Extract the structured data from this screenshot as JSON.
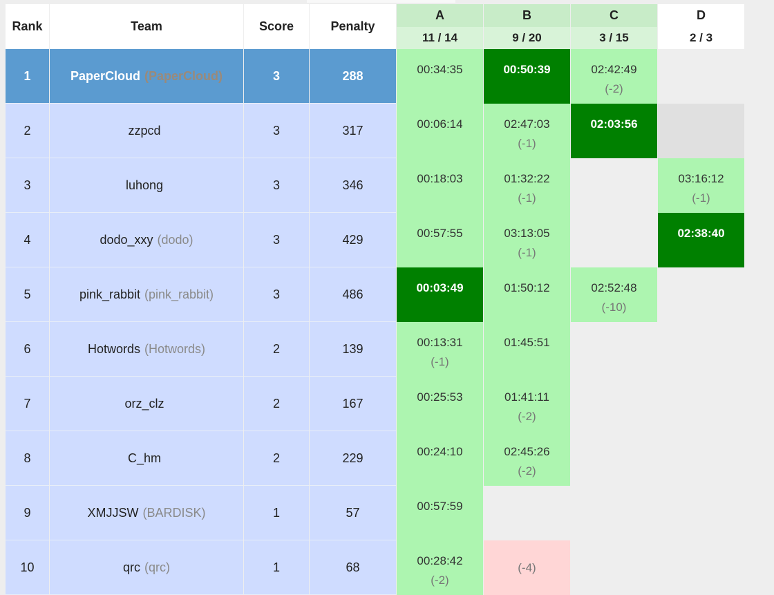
{
  "columns": {
    "rank": "Rank",
    "team": "Team",
    "score": "Score",
    "penalty": "Penalty"
  },
  "problems": [
    {
      "letter": "A",
      "stat": "11 / 14"
    },
    {
      "letter": "B",
      "stat": "9 / 20"
    },
    {
      "letter": "C",
      "stat": "3 / 15"
    },
    {
      "letter": "D",
      "stat": "2 / 3"
    }
  ],
  "rows": [
    {
      "rank": "1",
      "name": "PaperCloud",
      "alias": "(PaperCloud)",
      "score": "3",
      "penalty": "288",
      "results": [
        {
          "status": "ac",
          "time": "00:34:35",
          "tries": ""
        },
        {
          "status": "fb",
          "time": "00:50:39",
          "tries": ""
        },
        {
          "status": "ac",
          "time": "02:42:49",
          "tries": "(-2)"
        },
        {
          "status": "none",
          "time": "",
          "tries": ""
        }
      ]
    },
    {
      "rank": "2",
      "name": "zzpcd",
      "alias": "",
      "score": "3",
      "penalty": "317",
      "results": [
        {
          "status": "ac",
          "time": "00:06:14",
          "tries": ""
        },
        {
          "status": "ac",
          "time": "02:47:03",
          "tries": "(-1)"
        },
        {
          "status": "fb",
          "time": "02:03:56",
          "tries": ""
        },
        {
          "status": "pend",
          "time": "",
          "tries": ""
        }
      ]
    },
    {
      "rank": "3",
      "name": "luhong",
      "alias": "",
      "score": "3",
      "penalty": "346",
      "results": [
        {
          "status": "ac",
          "time": "00:18:03",
          "tries": ""
        },
        {
          "status": "ac",
          "time": "01:32:22",
          "tries": "(-1)"
        },
        {
          "status": "none",
          "time": "",
          "tries": ""
        },
        {
          "status": "ac",
          "time": "03:16:12",
          "tries": "(-1)"
        }
      ]
    },
    {
      "rank": "4",
      "name": "dodo_xxy",
      "alias": "(dodo)",
      "score": "3",
      "penalty": "429",
      "results": [
        {
          "status": "ac",
          "time": "00:57:55",
          "tries": ""
        },
        {
          "status": "ac",
          "time": "03:13:05",
          "tries": "(-1)"
        },
        {
          "status": "none",
          "time": "",
          "tries": ""
        },
        {
          "status": "fb",
          "time": "02:38:40",
          "tries": ""
        }
      ]
    },
    {
      "rank": "5",
      "name": "pink_rabbit",
      "alias": "(pink_rabbit)",
      "score": "3",
      "penalty": "486",
      "results": [
        {
          "status": "fb",
          "time": "00:03:49",
          "tries": ""
        },
        {
          "status": "ac",
          "time": "01:50:12",
          "tries": ""
        },
        {
          "status": "ac",
          "time": "02:52:48",
          "tries": "(-10)"
        },
        {
          "status": "none",
          "time": "",
          "tries": ""
        }
      ]
    },
    {
      "rank": "6",
      "name": "Hotwords",
      "alias": "(Hotwords)",
      "score": "2",
      "penalty": "139",
      "results": [
        {
          "status": "ac",
          "time": "00:13:31",
          "tries": "(-1)"
        },
        {
          "status": "ac",
          "time": "01:45:51",
          "tries": ""
        },
        {
          "status": "none",
          "time": "",
          "tries": ""
        },
        {
          "status": "none",
          "time": "",
          "tries": ""
        }
      ]
    },
    {
      "rank": "7",
      "name": "orz_clz",
      "alias": "",
      "score": "2",
      "penalty": "167",
      "results": [
        {
          "status": "ac",
          "time": "00:25:53",
          "tries": ""
        },
        {
          "status": "ac",
          "time": "01:41:11",
          "tries": "(-2)"
        },
        {
          "status": "none",
          "time": "",
          "tries": ""
        },
        {
          "status": "none",
          "time": "",
          "tries": ""
        }
      ]
    },
    {
      "rank": "8",
      "name": "C_hm",
      "alias": "",
      "score": "2",
      "penalty": "229",
      "results": [
        {
          "status": "ac",
          "time": "00:24:10",
          "tries": ""
        },
        {
          "status": "ac",
          "time": "02:45:26",
          "tries": "(-2)"
        },
        {
          "status": "none",
          "time": "",
          "tries": ""
        },
        {
          "status": "none",
          "time": "",
          "tries": ""
        }
      ]
    },
    {
      "rank": "9",
      "name": "XMJJSW",
      "alias": "(BARDISK)",
      "score": "1",
      "penalty": "57",
      "results": [
        {
          "status": "ac",
          "time": "00:57:59",
          "tries": ""
        },
        {
          "status": "none",
          "time": "",
          "tries": ""
        },
        {
          "status": "none",
          "time": "",
          "tries": ""
        },
        {
          "status": "none",
          "time": "",
          "tries": ""
        }
      ]
    },
    {
      "rank": "10",
      "name": "qrc",
      "alias": "(qrc)",
      "score": "1",
      "penalty": "68",
      "results": [
        {
          "status": "ac",
          "time": "00:28:42",
          "tries": "(-2)"
        },
        {
          "status": "wa",
          "time": "",
          "tries": "(-4)"
        },
        {
          "status": "none",
          "time": "",
          "tries": ""
        },
        {
          "status": "none",
          "time": "",
          "tries": ""
        }
      ]
    }
  ]
}
